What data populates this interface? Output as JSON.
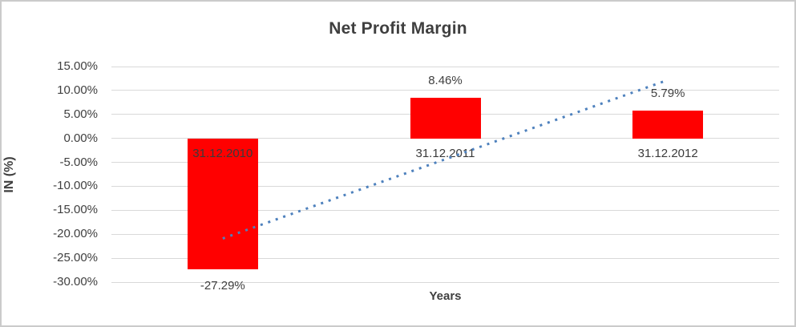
{
  "chart_data": {
    "type": "bar",
    "title": "Net Profit Margin",
    "xlabel": "Years",
    "ylabel": "IN (%)",
    "categories": [
      "31.12.2010",
      "31.12.2011",
      "31.12.2012"
    ],
    "values": [
      -27.29,
      8.46,
      5.79
    ],
    "data_labels": [
      "-27.29%",
      "8.46%",
      "5.79%"
    ],
    "y_ticks": [
      "15.00%",
      "10.00%",
      "5.00%",
      "0.00%",
      "-5.00%",
      "-10.00%",
      "-15.00%",
      "-20.00%",
      "-25.00%",
      "-30.00%"
    ],
    "ylim": [
      -30,
      15
    ],
    "y_step": 5,
    "grid": true,
    "legend": false,
    "bar_color": "#FF0000",
    "trendline": {
      "type": "linear",
      "style": "dotted",
      "color": "#4E81BD",
      "start_value": -20.89,
      "end_value": 12.19
    }
  }
}
